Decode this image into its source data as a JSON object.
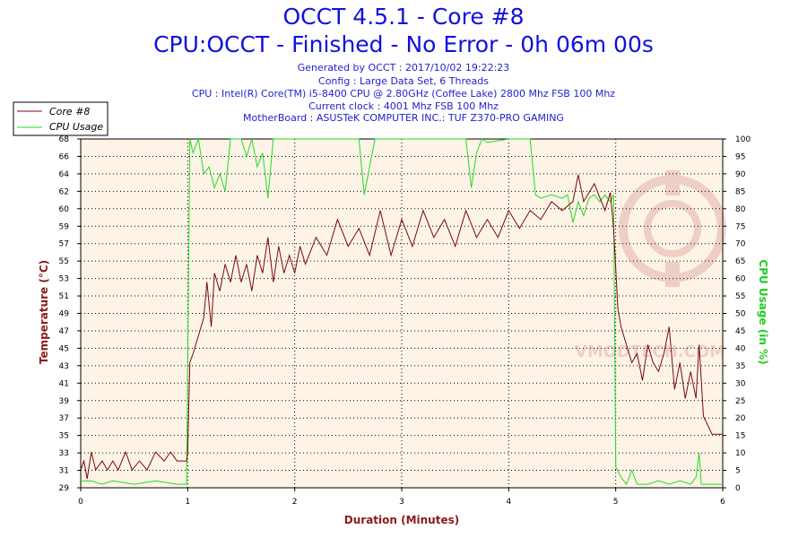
{
  "header": {
    "title": "OCCT 4.5.1 - Core #8",
    "subtitle": "CPU:OCCT - Finished - No Error - 0h 06m 00s",
    "info_lines": [
      "Generated by OCCT : 2017/10/02 19:22:23",
      "Config : Large Data Set, 6 Threads",
      "CPU : Intel(R) Core(TM) i5-8400 CPU @ 2.80GHz (Coffee Lake) 2800 Mhz FSB 100 Mhz",
      "Current clock : 4001 Mhz FSB 100 Mhz",
      "MotherBoard : ASUSTeK COMPUTER INC.: TUF Z370-PRO GAMING"
    ]
  },
  "watermark": "VMODTECH.COM",
  "colors": {
    "temperature": "#7a0a0a",
    "usage": "#22dd22",
    "title": "#1010e0",
    "plot_bg": "#fdf3e6",
    "axis_label": "#8b1a1a"
  },
  "chart_data": {
    "type": "line",
    "xlabel": "Duration (Minutes)",
    "ylabel": "Temperature (°C)",
    "y2label": "CPU Usage (in %)",
    "xlim": [
      0,
      6
    ],
    "ylim": [
      29,
      68
    ],
    "y2lim": [
      0,
      100
    ],
    "grid": true,
    "legend_position": "top-left",
    "x_ticks": [
      "0",
      "1",
      "2",
      "3",
      "4",
      "5",
      "6"
    ],
    "y_ticks": [
      "29",
      "31",
      "33",
      "35",
      "37",
      "39",
      "41",
      "43",
      "45",
      "47",
      "49",
      "51",
      "53",
      "55",
      "57",
      "59",
      "60",
      "62",
      "64",
      "66",
      "68"
    ],
    "y2_ticks": [
      "0",
      "5",
      "10",
      "15",
      "20",
      "25",
      "30",
      "35",
      "40",
      "45",
      "50",
      "55",
      "60",
      "65",
      "70",
      "75",
      "80",
      "85",
      "90",
      "95",
      "100"
    ],
    "series": [
      {
        "name": "Core #8",
        "axis": "left",
        "points": [
          [
            0,
            31
          ],
          [
            0.03,
            32
          ],
          [
            0.06,
            30
          ],
          [
            0.1,
            33
          ],
          [
            0.14,
            31
          ],
          [
            0.2,
            32
          ],
          [
            0.25,
            31
          ],
          [
            0.3,
            32
          ],
          [
            0.35,
            31
          ],
          [
            0.42,
            33
          ],
          [
            0.48,
            31
          ],
          [
            0.55,
            32
          ],
          [
            0.62,
            31
          ],
          [
            0.7,
            33
          ],
          [
            0.78,
            32
          ],
          [
            0.84,
            33
          ],
          [
            0.9,
            32
          ],
          [
            0.95,
            32
          ],
          [
            0.99,
            32
          ],
          [
            1.0,
            33
          ],
          [
            1.02,
            43
          ],
          [
            1.05,
            44
          ],
          [
            1.1,
            46
          ],
          [
            1.15,
            48
          ],
          [
            1.18,
            52
          ],
          [
            1.22,
            47
          ],
          [
            1.25,
            53
          ],
          [
            1.3,
            51
          ],
          [
            1.35,
            54
          ],
          [
            1.4,
            52
          ],
          [
            1.45,
            55
          ],
          [
            1.5,
            52
          ],
          [
            1.55,
            54
          ],
          [
            1.6,
            51
          ],
          [
            1.65,
            55
          ],
          [
            1.7,
            53
          ],
          [
            1.75,
            57
          ],
          [
            1.8,
            52
          ],
          [
            1.85,
            56
          ],
          [
            1.9,
            53
          ],
          [
            1.95,
            55
          ],
          [
            2.0,
            53
          ],
          [
            2.05,
            56
          ],
          [
            2.1,
            54
          ],
          [
            2.2,
            57
          ],
          [
            2.3,
            55
          ],
          [
            2.4,
            59
          ],
          [
            2.5,
            56
          ],
          [
            2.6,
            58
          ],
          [
            2.7,
            55
          ],
          [
            2.8,
            60
          ],
          [
            2.9,
            55
          ],
          [
            3.0,
            59
          ],
          [
            3.1,
            56
          ],
          [
            3.2,
            60
          ],
          [
            3.3,
            57
          ],
          [
            3.4,
            59
          ],
          [
            3.5,
            56
          ],
          [
            3.6,
            60
          ],
          [
            3.7,
            57
          ],
          [
            3.8,
            59
          ],
          [
            3.9,
            57
          ],
          [
            4.0,
            60
          ],
          [
            4.1,
            58
          ],
          [
            4.2,
            60
          ],
          [
            4.3,
            59
          ],
          [
            4.4,
            61
          ],
          [
            4.5,
            60
          ],
          [
            4.6,
            61
          ],
          [
            4.65,
            64
          ],
          [
            4.7,
            61
          ],
          [
            4.8,
            63
          ],
          [
            4.9,
            60
          ],
          [
            4.95,
            62
          ],
          [
            4.98,
            58
          ],
          [
            5.02,
            49
          ],
          [
            5.05,
            47
          ],
          [
            5.1,
            45
          ],
          [
            5.15,
            43
          ],
          [
            5.2,
            44
          ],
          [
            5.25,
            41
          ],
          [
            5.3,
            45
          ],
          [
            5.35,
            43
          ],
          [
            5.4,
            42
          ],
          [
            5.45,
            44
          ],
          [
            5.5,
            47
          ],
          [
            5.55,
            40
          ],
          [
            5.6,
            43
          ],
          [
            5.65,
            39
          ],
          [
            5.7,
            42
          ],
          [
            5.75,
            39
          ],
          [
            5.78,
            45
          ],
          [
            5.82,
            37
          ],
          [
            5.86,
            36
          ],
          [
            5.9,
            35
          ],
          [
            5.95,
            35
          ],
          [
            6.0,
            35
          ]
        ]
      },
      {
        "name": "CPU Usage",
        "axis": "right",
        "points": [
          [
            0,
            2
          ],
          [
            0.1,
            2
          ],
          [
            0.2,
            1
          ],
          [
            0.3,
            2
          ],
          [
            0.5,
            1
          ],
          [
            0.7,
            2
          ],
          [
            0.9,
            1
          ],
          [
            0.99,
            1
          ],
          [
            1.02,
            100
          ],
          [
            1.05,
            96
          ],
          [
            1.1,
            100
          ],
          [
            1.15,
            90
          ],
          [
            1.2,
            92
          ],
          [
            1.25,
            86
          ],
          [
            1.3,
            90
          ],
          [
            1.35,
            85
          ],
          [
            1.4,
            100
          ],
          [
            1.5,
            100
          ],
          [
            1.55,
            95
          ],
          [
            1.6,
            100
          ],
          [
            1.65,
            92
          ],
          [
            1.7,
            96
          ],
          [
            1.75,
            83
          ],
          [
            1.8,
            100
          ],
          [
            2.0,
            100
          ],
          [
            2.2,
            100
          ],
          [
            2.4,
            100
          ],
          [
            2.6,
            100
          ],
          [
            2.65,
            84
          ],
          [
            2.7,
            92
          ],
          [
            2.75,
            100
          ],
          [
            3.0,
            100
          ],
          [
            3.2,
            100
          ],
          [
            3.4,
            100
          ],
          [
            3.6,
            100
          ],
          [
            3.65,
            86
          ],
          [
            3.7,
            96
          ],
          [
            3.75,
            100
          ],
          [
            3.8,
            99
          ],
          [
            4.0,
            100
          ],
          [
            4.2,
            100
          ],
          [
            4.25,
            84
          ],
          [
            4.3,
            83
          ],
          [
            4.4,
            84
          ],
          [
            4.5,
            83
          ],
          [
            4.55,
            84
          ],
          [
            4.6,
            76
          ],
          [
            4.65,
            82
          ],
          [
            4.7,
            78
          ],
          [
            4.75,
            83
          ],
          [
            4.8,
            84
          ],
          [
            4.85,
            82
          ],
          [
            4.9,
            84
          ],
          [
            4.95,
            82
          ],
          [
            4.98,
            84
          ],
          [
            5.0,
            6
          ],
          [
            5.05,
            3
          ],
          [
            5.1,
            1
          ],
          [
            5.15,
            5
          ],
          [
            5.2,
            1
          ],
          [
            5.3,
            1
          ],
          [
            5.4,
            2
          ],
          [
            5.5,
            1
          ],
          [
            5.6,
            2
          ],
          [
            5.7,
            1
          ],
          [
            5.75,
            3
          ],
          [
            5.78,
            10
          ],
          [
            5.8,
            1
          ],
          [
            5.9,
            1
          ],
          [
            6.0,
            1
          ]
        ]
      }
    ]
  }
}
